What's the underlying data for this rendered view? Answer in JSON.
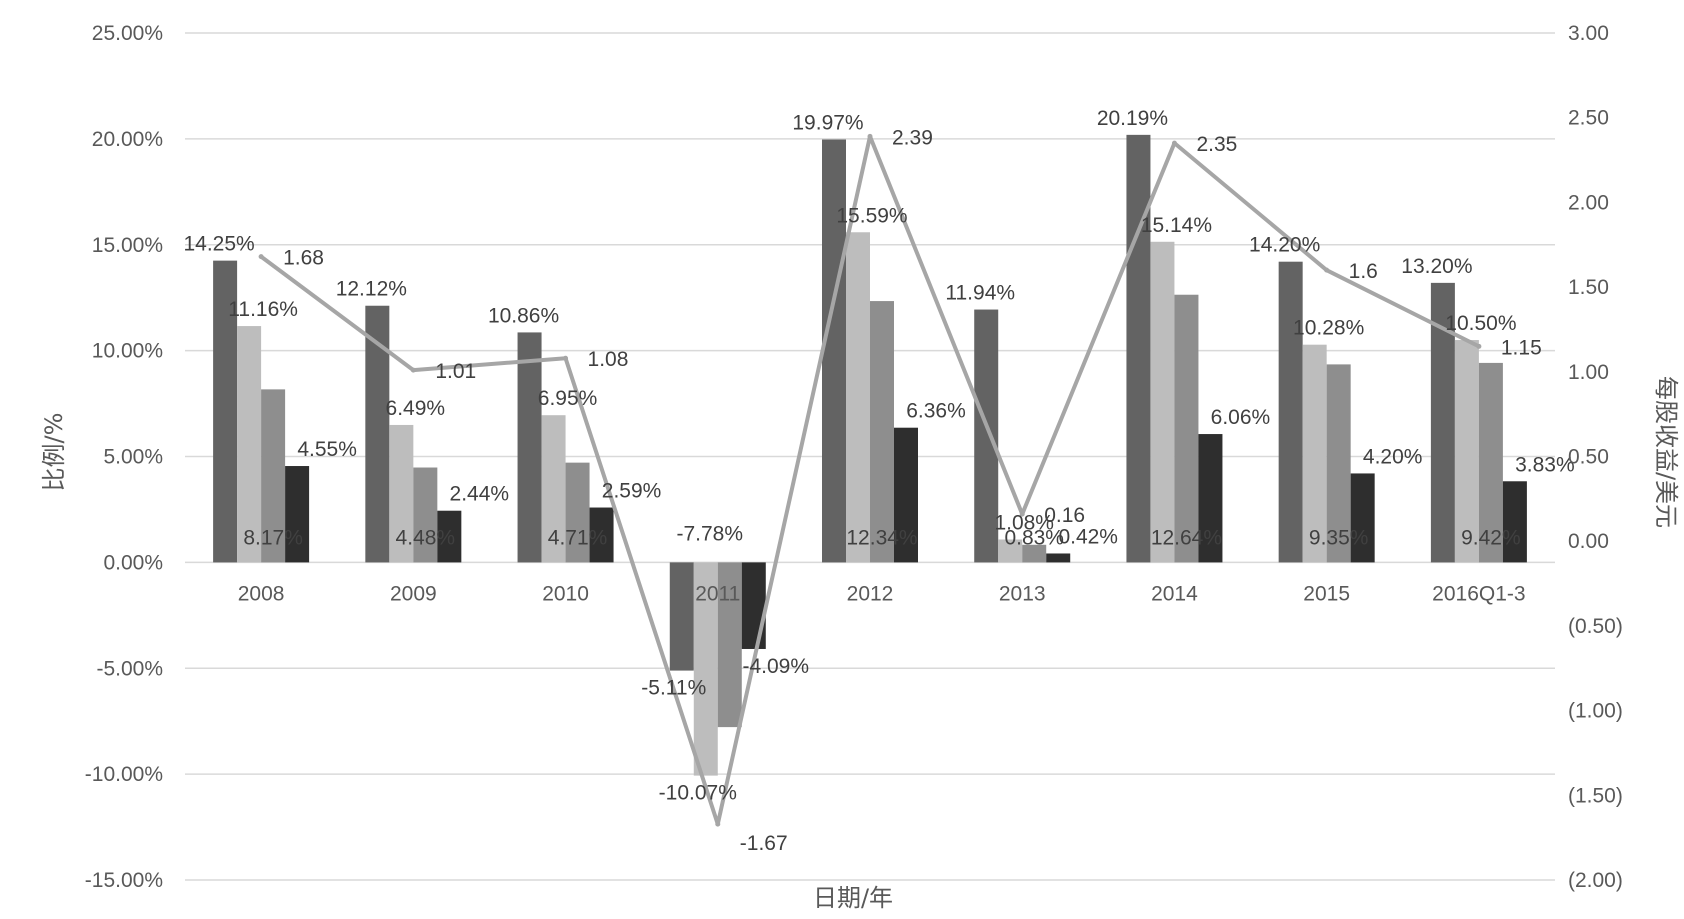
{
  "chart_data": {
    "type": "bar",
    "xlabel": "日期/年",
    "ylabel": "比例/%",
    "y2label": "每股收益/美元",
    "categories": [
      "2008",
      "2009",
      "2010",
      "2011",
      "2012",
      "2013",
      "2014",
      "2015",
      "2016Q1-3"
    ],
    "ylim": [
      -15,
      25
    ],
    "y2lim": [
      -2,
      3
    ],
    "y_ticks": [
      "25.00%",
      "20.00%",
      "15.00%",
      "10.00%",
      "5.00%",
      "0.00%",
      "-5.00%",
      "-10.00%",
      "-15.00%"
    ],
    "y2_ticks": [
      "3.00",
      "2.50",
      "2.00",
      "1.50",
      "1.00",
      "0.50",
      "0.00",
      "(0.50)",
      "(1.00)",
      "(1.50)",
      "(2.00)"
    ],
    "grid": true,
    "series": [
      {
        "axis": "left",
        "kind": "bar",
        "color": "#636363",
        "values": [
          14.25,
          12.12,
          10.86,
          -5.11,
          19.97,
          11.94,
          20.19,
          14.2,
          13.2
        ],
        "labels": [
          "14.25%",
          "12.12%",
          "10.86%",
          "-5.11%",
          "19.97%",
          "11.94%",
          "20.19%",
          "14.20%",
          "13.20%"
        ]
      },
      {
        "axis": "left",
        "kind": "bar",
        "color": "#bdbdbd",
        "values": [
          11.16,
          6.49,
          6.95,
          -10.07,
          15.59,
          1.08,
          15.14,
          10.28,
          10.5
        ],
        "labels": [
          "11.16%",
          "6.49%",
          "6.95%",
          "-10.07%",
          "15.59%",
          "1.08%",
          "15.14%",
          "10.28%",
          "10.50%"
        ]
      },
      {
        "axis": "left",
        "kind": "bar",
        "color": "#8e8e8e",
        "values": [
          8.17,
          4.48,
          4.71,
          -7.78,
          12.34,
          0.83,
          12.64,
          9.35,
          9.42
        ],
        "labels": [
          "8.17%",
          "4.48%",
          "4.71%",
          "-7.78%",
          "12.34%",
          "0.83%",
          "12.64%",
          "9.35%",
          "9.42%"
        ]
      },
      {
        "axis": "left",
        "kind": "bar",
        "color": "#2e2e2e",
        "values": [
          4.55,
          2.44,
          2.59,
          -4.09,
          6.36,
          0.42,
          6.06,
          4.2,
          3.83
        ],
        "labels": [
          "4.55%",
          "2.44%",
          "2.59%",
          "-4.09%",
          "6.36%",
          "0.42%",
          "6.06%",
          "4.20%",
          "3.83%"
        ]
      },
      {
        "axis": "right",
        "kind": "line",
        "color": "#a6a6a6",
        "values": [
          1.68,
          1.01,
          1.08,
          -1.67,
          2.39,
          0.16,
          2.35,
          1.6,
          1.15
        ],
        "labels": [
          "1.68",
          "1.01",
          "1.08",
          "-1.67",
          "2.39",
          "0.16",
          "2.35",
          "1.6",
          "1.15"
        ]
      }
    ]
  }
}
